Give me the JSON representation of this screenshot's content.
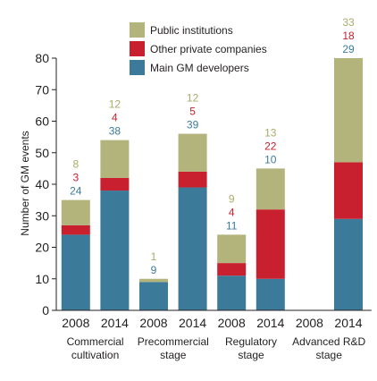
{
  "chart_data": {
    "type": "bar",
    "stacked": true,
    "ylabel": "Number of GM events",
    "ylim": [
      0,
      80
    ],
    "yticks": [
      0,
      10,
      20,
      30,
      40,
      50,
      60,
      70,
      80
    ],
    "grid": false,
    "legend_position": "top",
    "groups": [
      {
        "label": "Commercial cultivation",
        "lines": [
          "Commercial",
          "cultivation"
        ]
      },
      {
        "label": "Precommercial stage",
        "lines": [
          "Precommercial",
          "stage"
        ]
      },
      {
        "label": "Regulatory stage",
        "lines": [
          "Regulatory",
          "stage"
        ]
      },
      {
        "label": "Advanced R&D stage",
        "lines": [
          "Advanced R&D",
          "stage"
        ]
      }
    ],
    "categories": [
      "2008",
      "2014",
      "2008",
      "2014",
      "2008",
      "2014",
      "2008",
      "2014"
    ],
    "series": [
      {
        "name": "Main GM developers",
        "color": "#3c7a9a",
        "label_color": "#3c7a9a",
        "values": [
          24,
          38,
          9,
          39,
          11,
          10,
          null,
          29
        ]
      },
      {
        "name": "Other private companies",
        "color": "#c8202e",
        "label_color": "#c8202e",
        "values": [
          3,
          4,
          null,
          5,
          4,
          22,
          null,
          18
        ]
      },
      {
        "name": "Public institutions",
        "color": "#b2b47c",
        "label_color": "#a9ab6a",
        "values": [
          8,
          12,
          1,
          12,
          9,
          13,
          null,
          33
        ]
      }
    ],
    "legend_order": [
      "Public institutions",
      "Other private companies",
      "Main GM developers"
    ]
  }
}
